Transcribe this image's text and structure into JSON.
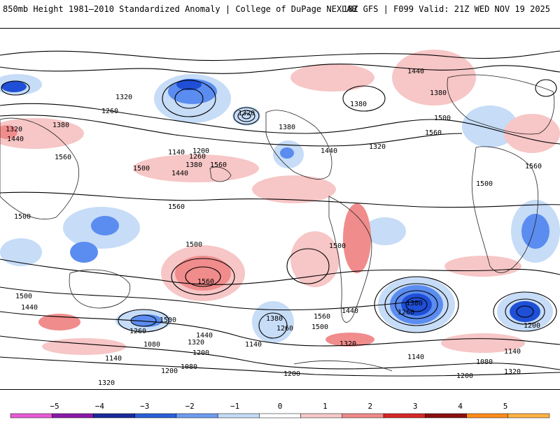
{
  "title": {
    "left": "850mb Height 1981–2010 Standardized Anomaly | College of DuPage NEXLAB",
    "right": "18Z GFS | F099 Valid: 21Z WED NOV 19 2025"
  },
  "map": {
    "contour_labels": [
      "1320",
      "1260",
      "1380",
      "1440",
      "1320",
      "1560",
      "1500",
      "1440",
      "1200",
      "1140",
      "1260",
      "1380",
      "1560",
      "1500",
      "1320",
      "1440",
      "1380",
      "1560",
      "1500",
      "1440",
      "1380",
      "1560",
      "1500",
      "1320",
      "1380",
      "1500",
      "1560",
      "1500",
      "1500",
      "1440",
      "1260",
      "1200",
      "1140",
      "1080",
      "1500",
      "1560",
      "1440",
      "1380",
      "1320",
      "1260",
      "1200",
      "1140",
      "1080",
      "1200",
      "1320",
      "1260",
      "1560",
      "1500",
      "1440",
      "1380",
      "1320",
      "1260",
      "1140",
      "1200",
      "1140",
      "1080",
      "1200",
      "1320",
      "1260"
    ],
    "colors": {
      "neg_strong": "#1f4fd6",
      "neg_mid": "#5b8cf0",
      "neg_light": "#c6dcf7",
      "pos_light": "#f7c6c6",
      "pos_mid": "#f08c8c",
      "pos_strong": "#d62828"
    }
  },
  "colorbar": {
    "ticks": [
      "−5",
      "−4",
      "−3",
      "−2",
      "−1",
      "0",
      "1",
      "2",
      "3",
      "4",
      "5"
    ],
    "colors": [
      "#e85bd6",
      "#8a1aa8",
      "#1a2a9a",
      "#2a5fd6",
      "#6f9cf0",
      "#c4dbf7",
      "#ffffff",
      "#f7c9c9",
      "#f08a8a",
      "#d62828",
      "#8a0f0f",
      "#ff8c1a",
      "#ffb347"
    ]
  }
}
